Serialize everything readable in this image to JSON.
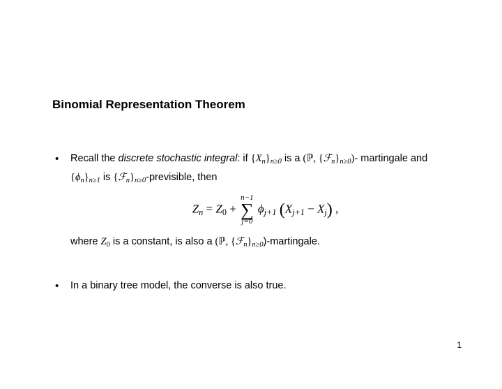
{
  "title": "Binomial Representation Theorem",
  "bullet1": {
    "lead": "Recall the ",
    "emph": "discrete stochastic integral",
    "after_emph": ":  if ",
    "seq1_open": "{",
    "seq1_var": "X",
    "seq1_idx": "n",
    "seq1_close": "}",
    "seq1_sub": "n≥0",
    "is_a": " is a ",
    "triple_open": "(",
    "prob": "ℙ",
    "comma1": ", ",
    "filt_open": "{",
    "filt": "ℱ",
    "filt_idx": "n",
    "filt_close": "}",
    "filt_sub": "n≥0",
    "triple_close": ")-",
    "line2a": "martingale and ",
    "phi_open": "{",
    "phi": "ϕ",
    "phi_idx": "n",
    "phi_close": "}",
    "phi_sub": "n≥1",
    "line2b": " is ",
    "filt2_open": "{",
    "filt2": "ℱ",
    "filt2_idx": "n",
    "filt2_close": "}",
    "filt2_sub": "n≥0",
    "line2c": "-previsible, then",
    "eq": {
      "Zn": "Z",
      "Zn_sub": "n",
      "eq": " = ",
      "Z0": "Z",
      "Z0_sub": "0",
      "plus": " + ",
      "sum_top": "n−1",
      "sigma": "∑",
      "sum_bot": "j=0",
      "phi": " ϕ",
      "phi_sub": "j+1",
      "lparen": "(",
      "Xj1": "X",
      "Xj1_sub": "j+1",
      "minus": " − ",
      "Xj": "X",
      "Xj_sub": "j",
      "rparen": ")",
      "tail": " ,"
    },
    "line3a": "where ",
    "Z0w": "Z",
    "Z0w_sub": "0",
    "line3b": " is a constant, is also a ",
    "triple2_open": "(",
    "prob2": "ℙ",
    "comma2": ", ",
    "filt3_open": "{",
    "filt3": "ℱ",
    "filt3_idx": "n",
    "filt3_close": "}",
    "filt3_sub": "n≥0",
    "triple2_close": ")-martingale."
  },
  "bullet2": "In a binary tree model, the converse is also true.",
  "page_number": "1"
}
